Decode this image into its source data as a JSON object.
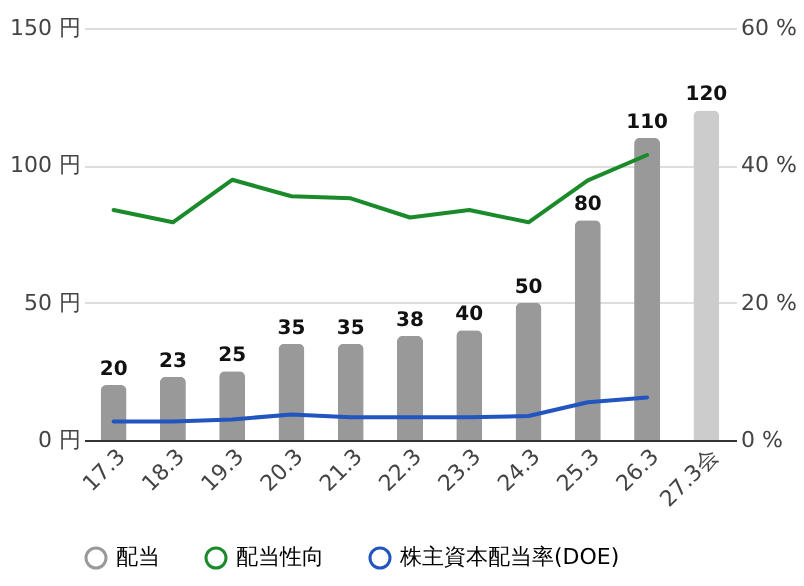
{
  "chart_data": {
    "type": "bar",
    "categories": [
      "17.3",
      "18.3",
      "19.3",
      "20.3",
      "21.3",
      "22.3",
      "23.3",
      "24.3",
      "25.3",
      "26.3",
      "27.3会"
    ],
    "series": [
      {
        "name": "配当",
        "color": "#999999",
        "colors": [
          "#999999",
          "#999999",
          "#999999",
          "#999999",
          "#999999",
          "#999999",
          "#999999",
          "#999999",
          "#999999",
          "#999999",
          "#cccccc"
        ],
        "values": [
          20,
          23,
          25,
          35,
          35,
          38,
          40,
          50,
          80,
          110,
          120
        ],
        "value_labels": [
          "20",
          "23",
          "25",
          "35",
          "35",
          "38",
          "40",
          "50",
          "80",
          "110",
          "120"
        ]
      },
      {
        "name": "配当性向",
        "type": "line",
        "axis": "y2",
        "color": "#1a8a2a",
        "values": [
          33.5,
          31.7,
          37.9,
          35.5,
          35.2,
          32.4,
          33.5,
          31.7,
          37.8,
          41.5,
          null
        ]
      },
      {
        "name": "株主資本配当率(DOE)",
        "type": "line",
        "axis": "y2",
        "color": "#2255c0",
        "values": [
          2.7,
          2.7,
          3.0,
          3.7,
          3.3,
          3.3,
          3.3,
          3.5,
          5.5,
          6.2,
          null
        ]
      }
    ],
    "ylim": [
      0,
      150
    ],
    "yticks": [
      {
        "value": 0,
        "label": "0 円"
      },
      {
        "value": 50,
        "label": "50 円"
      },
      {
        "value": 100,
        "label": "100 円"
      },
      {
        "value": 150,
        "label": "150 円"
      }
    ],
    "y2lim": [
      0,
      60
    ],
    "y2ticks": [
      {
        "value": 0,
        "label": "0 %"
      },
      {
        "value": 20,
        "label": "20 %"
      },
      {
        "value": 40,
        "label": "40 %"
      },
      {
        "value": 60,
        "label": "60 %"
      }
    ],
    "grid": "y",
    "legend": "bottom"
  }
}
